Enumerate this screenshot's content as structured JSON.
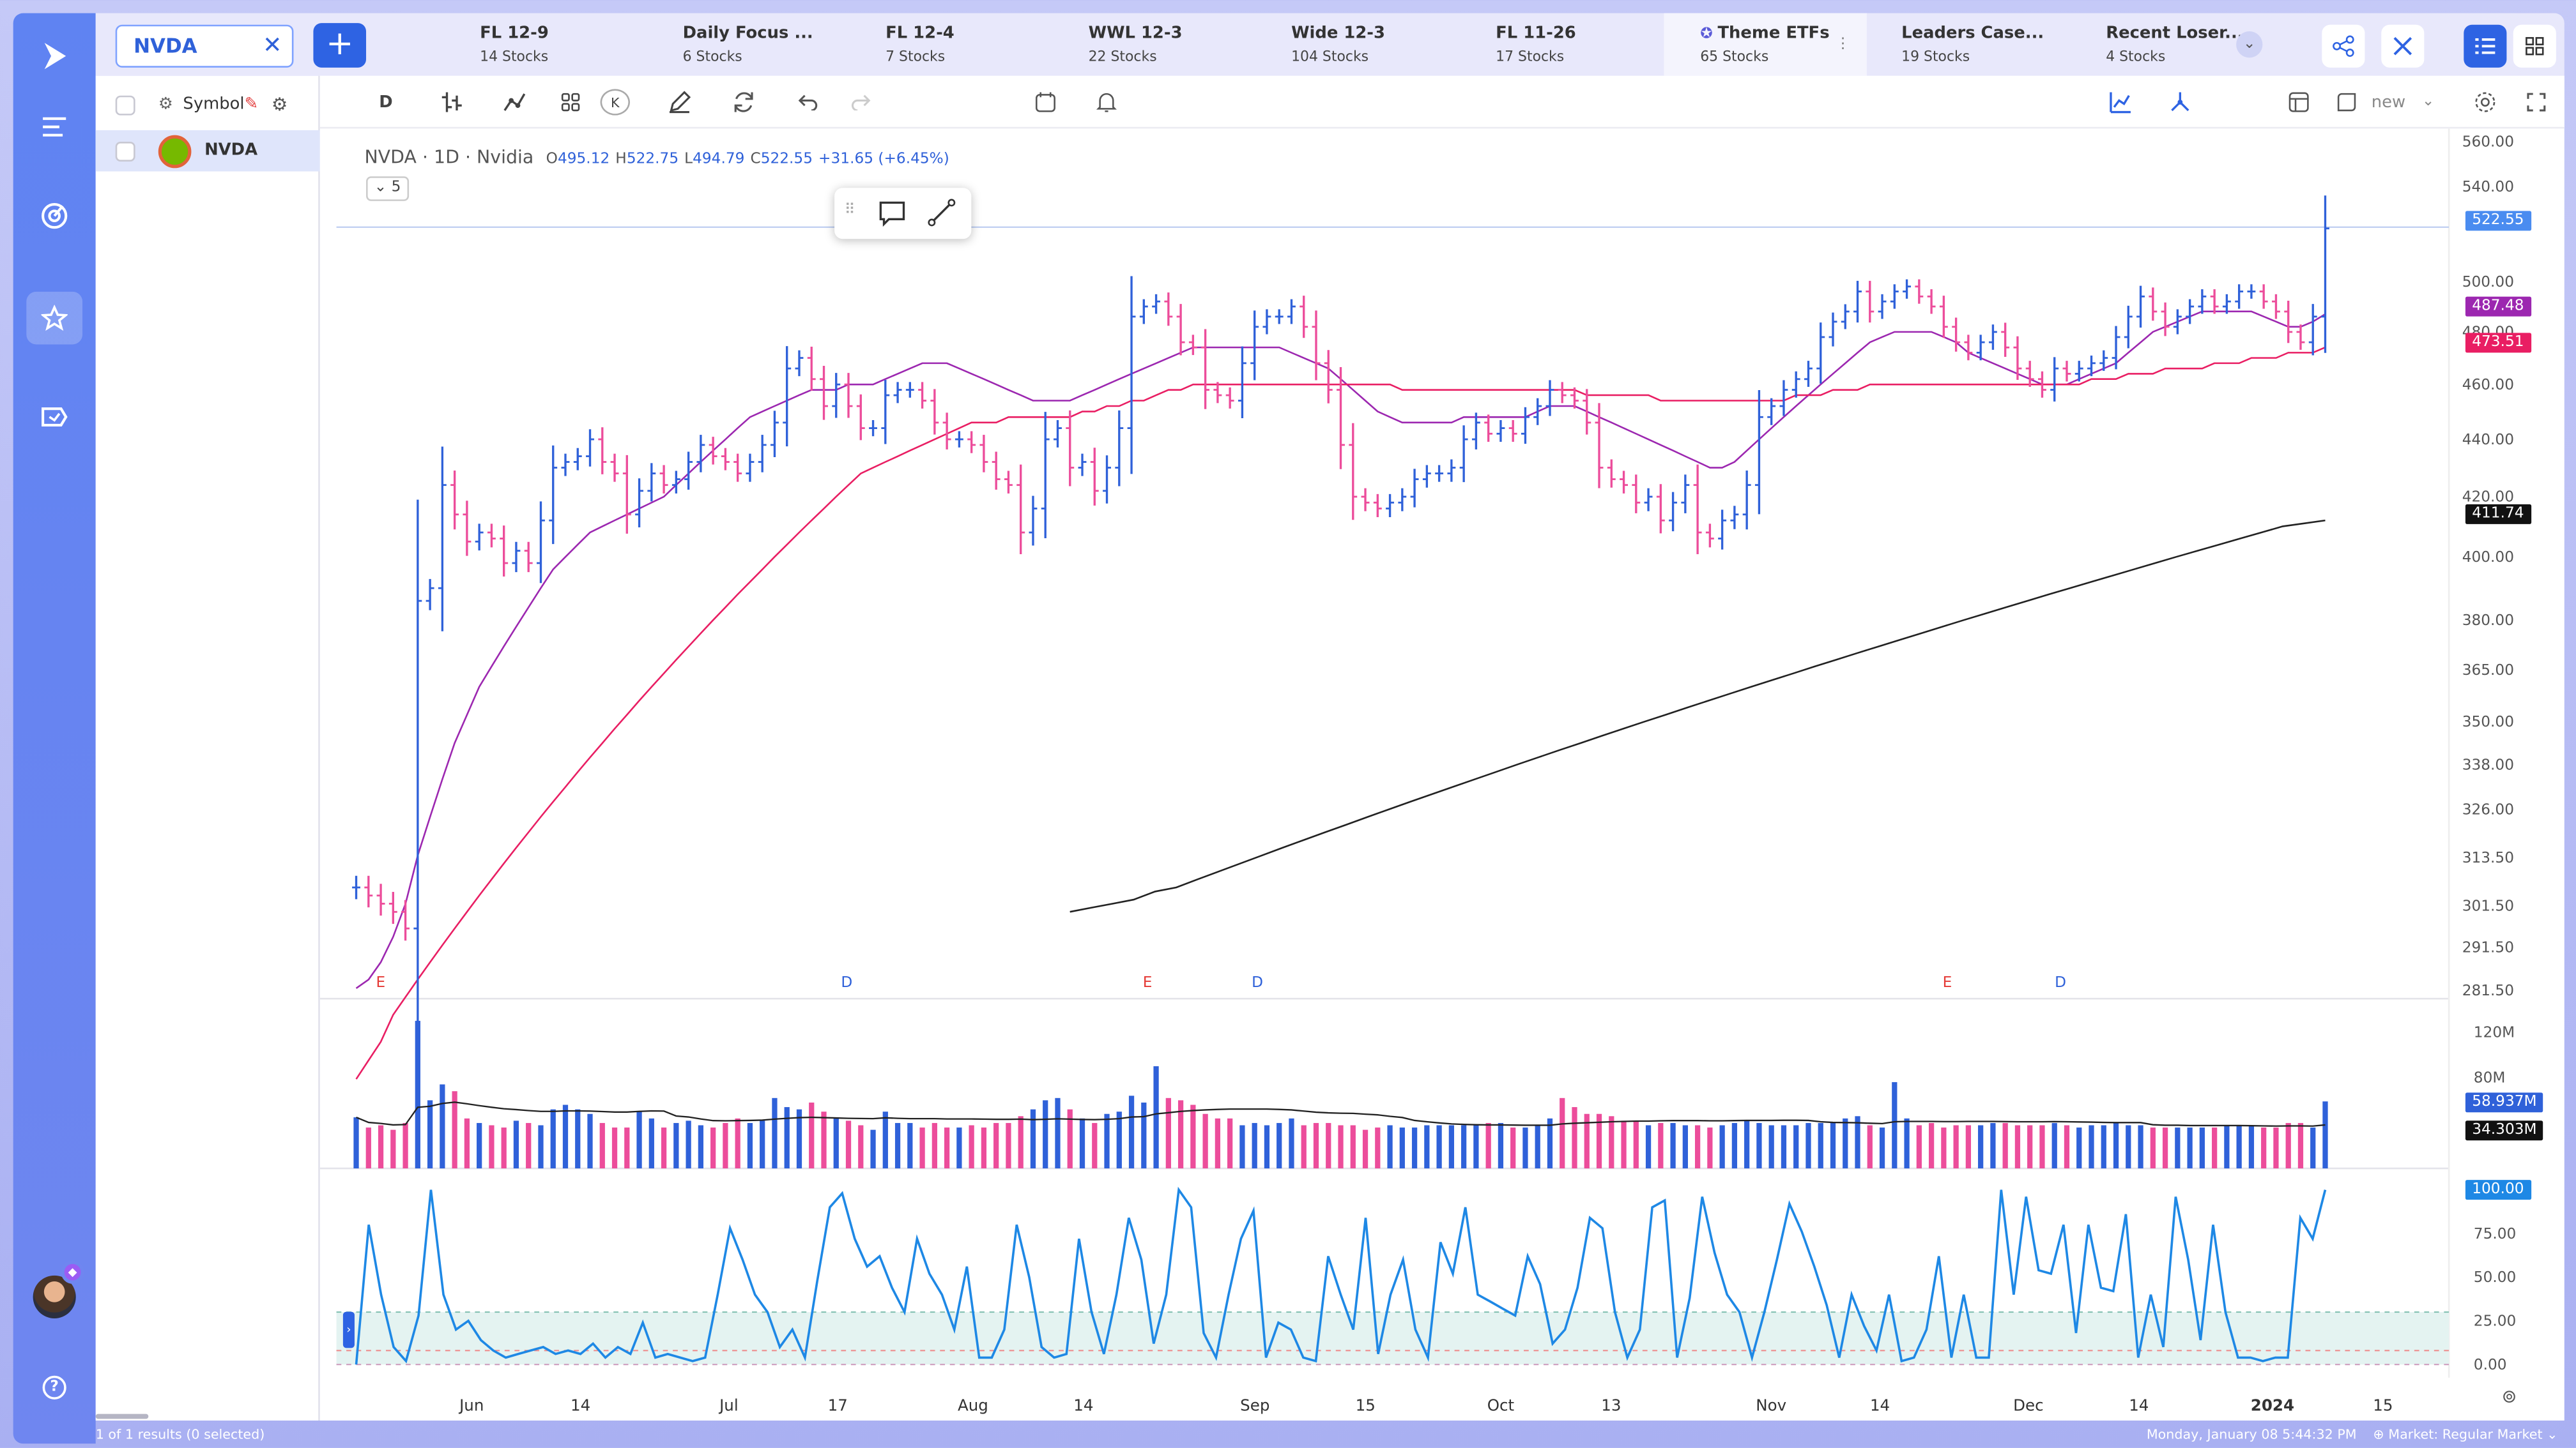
{
  "rail": {
    "items": [
      {
        "name": "logo-icon"
      },
      {
        "name": "menu-icon"
      },
      {
        "name": "scanner-icon"
      },
      {
        "name": "watchlist-icon",
        "active": true
      },
      {
        "name": "alerts-icon"
      }
    ],
    "help": "?"
  },
  "symbol_search": {
    "value": "NVDA",
    "clear": "✕"
  },
  "add_button": "+",
  "watchlist_tabs": [
    {
      "name": "FL 12-9",
      "count": "14 Stocks"
    },
    {
      "name": "Daily Focus ...",
      "count": "6 Stocks"
    },
    {
      "name": "FL 12-4",
      "count": "7 Stocks"
    },
    {
      "name": "WWL 12-3",
      "count": "22 Stocks"
    },
    {
      "name": "Wide 12-3",
      "count": "104 Stocks"
    },
    {
      "name": "FL 11-26",
      "count": "17 Stocks"
    },
    {
      "name": "Theme ETFs",
      "count": "65 Stocks",
      "active": true
    },
    {
      "name": "Leaders Case...",
      "count": "19 Stocks"
    },
    {
      "name": "Recent Loser...",
      "count": "4 Stocks"
    }
  ],
  "watchlist": {
    "column_header": "Symbol",
    "rows": [
      {
        "symbol": "NVDA"
      }
    ],
    "footer": "1 of 1 results (0 selected)"
  },
  "toolbar": {
    "interval": "D",
    "k_label": "K",
    "layout_name": "new"
  },
  "legend": {
    "symbol": "NVDA",
    "sep1": " · ",
    "interval": "1D",
    "sep2": " · ",
    "name": "Nvidia",
    "o_label": "O",
    "o": "495.12",
    "h_label": "H",
    "h": "522.75",
    "l_label": "L",
    "l": "494.79",
    "c_label": "C",
    "c": "522.55",
    "change": "+31.65 (+6.45%)",
    "collapse": "5"
  },
  "price_tags": {
    "last": "522.55",
    "ma21": "487.48",
    "ma50": "473.51",
    "ma200": "411.74",
    "vol_last": "58.937M",
    "vol_avg": "34.303M",
    "stoch_last": "100.00"
  },
  "colors": {
    "up": "#2f61d9",
    "down": "#ec4d9b",
    "ma21": "#9c27b0",
    "ma50": "#e91e63",
    "ma200": "#222222",
    "stoch": "#1e88e5"
  },
  "status": {
    "datetime": "Monday, January 08 5:44:32  PM",
    "market": "Market: Regular Market"
  },
  "chart_data": {
    "type": "ohlc",
    "symbol": "NVDA",
    "interval": "1D",
    "price_axis": {
      "ticks": [
        281.5,
        291.5,
        301.5,
        313.5,
        326.0,
        338.0,
        350.0,
        365.0,
        380.0,
        400.0,
        420.0,
        440.0,
        460.0,
        480.0,
        500.0,
        540.0,
        560.0
      ],
      "scale": "log"
    },
    "volume_axis": {
      "ticks": [
        "80M",
        "120M"
      ]
    },
    "stoch_axis": {
      "ticks": [
        "0.00",
        "25.00",
        "50.00",
        "75.00"
      ]
    },
    "x_labels": [
      "Jun",
      "14",
      "Jul",
      "17",
      "Aug",
      "14",
      "Sep",
      "15",
      "Oct",
      "13",
      "Nov",
      "14",
      "Dec",
      "14",
      "2024",
      "15"
    ],
    "events": [
      "E",
      "D",
      "E",
      "D",
      "E",
      "D"
    ],
    "series": [
      {
        "name": "price_close",
        "values": [
          306,
          304,
          302,
          300,
          296,
          386,
          390,
          424,
          414,
          405,
          408,
          406,
          398,
          402,
          398,
          412,
          430,
          432,
          434,
          440,
          432,
          428,
          414,
          422,
          428,
          424,
          426,
          432,
          438,
          434,
          432,
          428,
          432,
          438,
          446,
          466,
          470,
          462,
          452,
          460,
          452,
          444,
          444,
          456,
          458,
          458,
          454,
          446,
          440,
          440,
          438,
          432,
          426,
          424,
          408,
          416,
          440,
          444,
          430,
          432,
          422,
          430,
          444,
          486,
          490,
          492,
          486,
          476,
          474,
          458,
          456,
          454,
          468,
          482,
          486,
          486,
          490,
          482,
          468,
          458,
          438,
          420,
          418,
          416,
          418,
          420,
          426,
          428,
          428,
          430,
          440,
          446,
          442,
          444,
          442,
          448,
          452,
          458,
          456,
          454,
          446,
          430,
          426,
          424,
          418,
          420,
          412,
          418,
          424,
          408,
          406,
          412,
          414,
          424,
          448,
          452,
          458,
          462,
          466,
          478,
          484,
          488,
          496,
          488,
          492,
          496,
          498,
          494,
          490,
          482,
          476,
          472,
          476,
          480,
          474,
          466,
          462,
          458,
          466,
          464,
          466,
          468,
          470,
          478,
          486,
          494,
          488,
          482,
          486,
          490,
          494,
          490,
          492,
          496,
          496,
          492,
          488,
          480,
          476,
          486,
          522
        ]
      },
      {
        "name": "ma21",
        "values": [
          282,
          284,
          288,
          294,
          302,
          314,
          324,
          334,
          344,
          352,
          360,
          366,
          372,
          378,
          384,
          390,
          396,
          400,
          404,
          408,
          410,
          412,
          414,
          416,
          418,
          420,
          424,
          428,
          432,
          436,
          440,
          444,
          448,
          450,
          452,
          454,
          456,
          458,
          458,
          458,
          460,
          460,
          460,
          462,
          464,
          466,
          468,
          468,
          468,
          466,
          464,
          462,
          460,
          458,
          456,
          454,
          454,
          454,
          454,
          456,
          458,
          460,
          462,
          464,
          466,
          468,
          470,
          472,
          474,
          474,
          474,
          474,
          474,
          474,
          474,
          474,
          472,
          470,
          468,
          466,
          462,
          458,
          454,
          450,
          448,
          446,
          446,
          446,
          446,
          446,
          448,
          448,
          448,
          448,
          448,
          448,
          450,
          452,
          452,
          452,
          450,
          448,
          446,
          444,
          442,
          440,
          438,
          436,
          434,
          432,
          430,
          430,
          432,
          436,
          440,
          444,
          448,
          452,
          456,
          460,
          464,
          468,
          472,
          476,
          478,
          480,
          480,
          480,
          480,
          478,
          476,
          472,
          470,
          468,
          466,
          464,
          462,
          460,
          460,
          460,
          462,
          464,
          466,
          468,
          472,
          476,
          480,
          482,
          484,
          486,
          488,
          488,
          488,
          488,
          488,
          486,
          484,
          482,
          482,
          484,
          487
        ]
      },
      {
        "name": "ma50",
        "values": [
          262,
          266,
          270,
          276,
          280,
          284,
          288,
          292,
          296,
          300,
          304,
          308,
          312,
          316,
          320,
          324,
          328,
          332,
          336,
          340,
          344,
          348,
          352,
          356,
          360,
          364,
          368,
          372,
          376,
          380,
          384,
          388,
          392,
          396,
          400,
          404,
          408,
          412,
          416,
          420,
          424,
          428,
          430,
          432,
          434,
          436,
          438,
          440,
          442,
          444,
          446,
          446,
          446,
          448,
          448,
          448,
          448,
          448,
          448,
          450,
          450,
          452,
          452,
          454,
          454,
          456,
          458,
          458,
          460,
          460,
          460,
          460,
          460,
          460,
          460,
          460,
          460,
          460,
          460,
          460,
          460,
          460,
          460,
          460,
          460,
          458,
          458,
          458,
          458,
          458,
          458,
          458,
          458,
          458,
          458,
          458,
          458,
          458,
          458,
          458,
          456,
          456,
          456,
          456,
          456,
          456,
          454,
          454,
          454,
          454,
          454,
          454,
          454,
          454,
          454,
          454,
          454,
          456,
          456,
          456,
          458,
          458,
          458,
          460,
          460,
          460,
          460,
          460,
          460,
          460,
          460,
          460,
          460,
          460,
          460,
          460,
          460,
          460,
          460,
          460,
          460,
          462,
          462,
          462,
          464,
          464,
          464,
          466,
          466,
          466,
          466,
          468,
          468,
          468,
          470,
          470,
          470,
          472,
          472,
          472,
          474
        ]
      },
      {
        "name": "ma200",
        "values": [
          300,
          301,
          302,
          303,
          305,
          306,
          308,
          310,
          312,
          314,
          316,
          318,
          320,
          322,
          324,
          326,
          328,
          330,
          332,
          334,
          336,
          338,
          340,
          342,
          344,
          346,
          348,
          350,
          352,
          354,
          356,
          358,
          360,
          362,
          364,
          366,
          368,
          370,
          372,
          374,
          376,
          378,
          380,
          382,
          384,
          386,
          388,
          390,
          392,
          394,
          396,
          398,
          400,
          402,
          404,
          406,
          408,
          410,
          411,
          412
        ]
      },
      {
        "name": "volume",
        "values": [
          45,
          36,
          38,
          34,
          40,
          130,
          60,
          74,
          68,
          44,
          40,
          38,
          36,
          42,
          40,
          38,
          52,
          56,
          52,
          48,
          40,
          36,
          36,
          50,
          44,
          36,
          40,
          42,
          38,
          36,
          40,
          44,
          40,
          42,
          62,
          54,
          52,
          58,
          50,
          44,
          42,
          38,
          34,
          50,
          40,
          40,
          36,
          40,
          36,
          36,
          38,
          36,
          40,
          40,
          46,
          52,
          60,
          62,
          52,
          44,
          40,
          48,
          50,
          64,
          58,
          90,
          62,
          60,
          56,
          48,
          44,
          44,
          38,
          40,
          38,
          40,
          44,
          38,
          40,
          40,
          38,
          38,
          34,
          36,
          38,
          36,
          36,
          38,
          38,
          38,
          38,
          38,
          40,
          40,
          36,
          36,
          38,
          44,
          62,
          54,
          48,
          48,
          46,
          42,
          42,
          38,
          40,
          40,
          38,
          38,
          36,
          38,
          40,
          42,
          40,
          38,
          38,
          38,
          40,
          40,
          40,
          44,
          46,
          38,
          36,
          76,
          44,
          38,
          40,
          36,
          38,
          38,
          38,
          40,
          40,
          38,
          38,
          38,
          40,
          38,
          36,
          38,
          38,
          40,
          38,
          38,
          36,
          36,
          36,
          36,
          36,
          36,
          38,
          38,
          38,
          36,
          36,
          40,
          40,
          36,
          59
        ]
      },
      {
        "name": "stochastic",
        "values": [
          0,
          80,
          40,
          10,
          2,
          28,
          100,
          40,
          20,
          25,
          14,
          8,
          4,
          6,
          8,
          10,
          6,
          8,
          6,
          12,
          4,
          10,
          6,
          24,
          4,
          6,
          4,
          2,
          4,
          40,
          78,
          60,
          40,
          30,
          10,
          20,
          4,
          48,
          90,
          98,
          72,
          56,
          62,
          44,
          30,
          72,
          52,
          40,
          20,
          56,
          4,
          4,
          20,
          80,
          50,
          10,
          4,
          6,
          72,
          30,
          6,
          40,
          84,
          60,
          12,
          40,
          100,
          90,
          18,
          4,
          40,
          72,
          88,
          4,
          24,
          20,
          4,
          2,
          62,
          40,
          20,
          84,
          6,
          40,
          60,
          20,
          4,
          70,
          52,
          90,
          40,
          36,
          32,
          28,
          62,
          46,
          12,
          20,
          44,
          84,
          78,
          30,
          4,
          20,
          90,
          94,
          4,
          38,
          96,
          64,
          40,
          30,
          4,
          30,
          60,
          92,
          76,
          56,
          34,
          4,
          40,
          22,
          8,
          40,
          2,
          4,
          20,
          62,
          4,
          40,
          4,
          4,
          100,
          40,
          96,
          54,
          52,
          80,
          18,
          80,
          44,
          42,
          86,
          4,
          40,
          10,
          96,
          60,
          14,
          80,
          30,
          4,
          4,
          2,
          4,
          4,
          84,
          72,
          100
        ]
      }
    ]
  }
}
